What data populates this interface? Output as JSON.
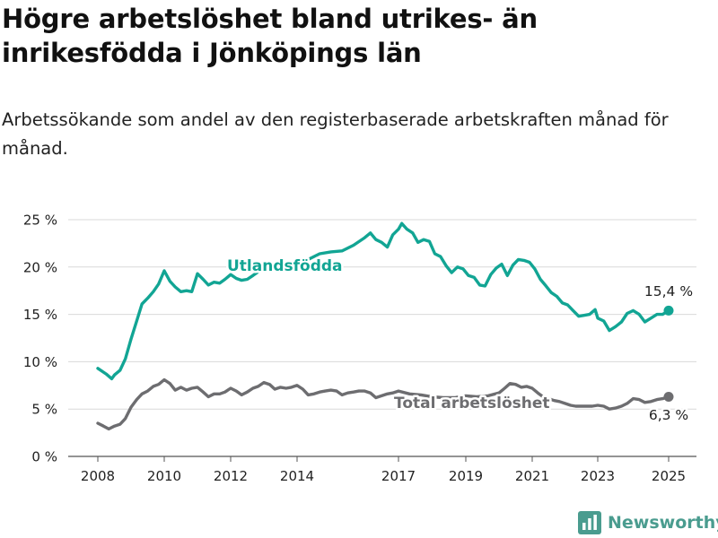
{
  "title": "Högre arbetslöshet bland utrikes- än inrikesfödda i Jönköpings län",
  "subtitle": "Arbetssökande som andel av den registerbaserade arbetskraften månad för månad.",
  "brand": "Newsworthy",
  "colors": {
    "utlandsfodda": "#12a594",
    "total": "#6d6d70",
    "brand": "#4a9c8f",
    "grid": "#d9d9d9"
  },
  "chart_data": {
    "type": "line",
    "x_unit": "year (decimal)",
    "y_unit": "%",
    "xlim": [
      2007.6,
      2025.95
    ],
    "ylim": [
      0,
      25
    ],
    "x_ticks": [
      2008,
      2010,
      2012,
      2014,
      2017,
      2019,
      2021,
      2023,
      2025
    ],
    "y_ticks": [
      {
        "value": 0,
        "label": "0 %"
      },
      {
        "value": 5,
        "label": "5 %"
      },
      {
        "value": 10,
        "label": "10 %"
      },
      {
        "value": 15,
        "label": "15 %"
      },
      {
        "value": 20,
        "label": "20 %"
      },
      {
        "value": 25,
        "label": "25 %"
      }
    ],
    "grid": "horizontal",
    "series": [
      {
        "name": "Utlandsfödda",
        "end_label": "15,4 %",
        "points": [
          [
            2008.0,
            9.3
          ],
          [
            2008.25,
            8.7
          ],
          [
            2008.42,
            8.2
          ],
          [
            2008.5,
            8.6
          ],
          [
            2008.67,
            9.1
          ],
          [
            2008.83,
            10.3
          ],
          [
            2009.0,
            12.4
          ],
          [
            2009.17,
            14.3
          ],
          [
            2009.33,
            16.1
          ],
          [
            2009.5,
            16.7
          ],
          [
            2009.67,
            17.4
          ],
          [
            2009.83,
            18.2
          ],
          [
            2010.0,
            19.6
          ],
          [
            2010.17,
            18.5
          ],
          [
            2010.33,
            17.9
          ],
          [
            2010.5,
            17.4
          ],
          [
            2010.67,
            17.5
          ],
          [
            2010.83,
            17.4
          ],
          [
            2011.0,
            19.3
          ],
          [
            2011.17,
            18.7
          ],
          [
            2011.33,
            18.1
          ],
          [
            2011.5,
            18.4
          ],
          [
            2011.67,
            18.3
          ],
          [
            2011.83,
            18.7
          ],
          [
            2012.0,
            19.2
          ],
          [
            2012.17,
            18.8
          ],
          [
            2012.33,
            18.6
          ],
          [
            2012.5,
            18.7
          ],
          [
            2012.67,
            19.1
          ],
          [
            2012.83,
            19.5
          ],
          [
            2013.0,
            20.1
          ],
          [
            2013.33,
            19.8
          ],
          [
            2013.67,
            20.3
          ],
          [
            2014.0,
            20.5
          ],
          [
            2014.33,
            20.8
          ],
          [
            2014.67,
            21.4
          ],
          [
            2015.0,
            21.6
          ],
          [
            2015.33,
            21.7
          ],
          [
            2015.67,
            22.3
          ],
          [
            2016.0,
            23.1
          ],
          [
            2016.17,
            23.6
          ],
          [
            2016.33,
            22.9
          ],
          [
            2016.5,
            22.6
          ],
          [
            2016.67,
            22.1
          ],
          [
            2016.83,
            23.4
          ],
          [
            2017.0,
            24.0
          ],
          [
            2017.1,
            24.6
          ],
          [
            2017.25,
            24.0
          ],
          [
            2017.42,
            23.6
          ],
          [
            2017.58,
            22.6
          ],
          [
            2017.75,
            22.9
          ],
          [
            2017.92,
            22.7
          ],
          [
            2018.08,
            21.4
          ],
          [
            2018.25,
            21.1
          ],
          [
            2018.42,
            20.1
          ],
          [
            2018.58,
            19.4
          ],
          [
            2018.75,
            20.0
          ],
          [
            2018.92,
            19.8
          ],
          [
            2019.08,
            19.1
          ],
          [
            2019.25,
            18.9
          ],
          [
            2019.42,
            18.1
          ],
          [
            2019.58,
            18.0
          ],
          [
            2019.75,
            19.2
          ],
          [
            2019.92,
            19.9
          ],
          [
            2020.08,
            20.3
          ],
          [
            2020.25,
            19.1
          ],
          [
            2020.42,
            20.2
          ],
          [
            2020.58,
            20.8
          ],
          [
            2020.75,
            20.7
          ],
          [
            2020.92,
            20.5
          ],
          [
            2021.08,
            19.8
          ],
          [
            2021.25,
            18.7
          ],
          [
            2021.42,
            18.0
          ],
          [
            2021.58,
            17.3
          ],
          [
            2021.75,
            16.9
          ],
          [
            2021.92,
            16.2
          ],
          [
            2022.08,
            16.0
          ],
          [
            2022.25,
            15.4
          ],
          [
            2022.42,
            14.8
          ],
          [
            2022.58,
            14.9
          ],
          [
            2022.75,
            15.0
          ],
          [
            2022.92,
            15.5
          ],
          [
            2023.0,
            14.6
          ],
          [
            2023.17,
            14.3
          ],
          [
            2023.33,
            13.3
          ],
          [
            2023.5,
            13.7
          ],
          [
            2023.67,
            14.2
          ],
          [
            2023.83,
            15.1
          ],
          [
            2024.0,
            15.4
          ],
          [
            2024.17,
            15.0
          ],
          [
            2024.33,
            14.2
          ],
          [
            2024.5,
            14.6
          ],
          [
            2024.67,
            15.0
          ],
          [
            2024.83,
            15.0
          ],
          [
            2025.0,
            15.4
          ]
        ]
      },
      {
        "name": "Total arbetslöshet",
        "end_label": "6,3 %",
        "points": [
          [
            2008.0,
            3.5
          ],
          [
            2008.17,
            3.2
          ],
          [
            2008.33,
            2.9
          ],
          [
            2008.5,
            3.2
          ],
          [
            2008.67,
            3.4
          ],
          [
            2008.83,
            4.0
          ],
          [
            2009.0,
            5.2
          ],
          [
            2009.17,
            6.0
          ],
          [
            2009.33,
            6.6
          ],
          [
            2009.5,
            6.9
          ],
          [
            2009.67,
            7.4
          ],
          [
            2009.83,
            7.6
          ],
          [
            2010.0,
            8.1
          ],
          [
            2010.17,
            7.7
          ],
          [
            2010.33,
            7.0
          ],
          [
            2010.5,
            7.3
          ],
          [
            2010.67,
            7.0
          ],
          [
            2010.83,
            7.2
          ],
          [
            2011.0,
            7.3
          ],
          [
            2011.17,
            6.8
          ],
          [
            2011.33,
            6.3
          ],
          [
            2011.5,
            6.6
          ],
          [
            2011.67,
            6.6
          ],
          [
            2011.83,
            6.8
          ],
          [
            2012.0,
            7.2
          ],
          [
            2012.17,
            6.9
          ],
          [
            2012.33,
            6.5
          ],
          [
            2012.5,
            6.8
          ],
          [
            2012.67,
            7.2
          ],
          [
            2012.83,
            7.4
          ],
          [
            2013.0,
            7.8
          ],
          [
            2013.17,
            7.6
          ],
          [
            2013.33,
            7.1
          ],
          [
            2013.5,
            7.3
          ],
          [
            2013.67,
            7.2
          ],
          [
            2013.83,
            7.3
          ],
          [
            2014.0,
            7.5
          ],
          [
            2014.17,
            7.1
          ],
          [
            2014.33,
            6.5
          ],
          [
            2014.5,
            6.6
          ],
          [
            2014.67,
            6.8
          ],
          [
            2014.83,
            6.9
          ],
          [
            2015.0,
            7.0
          ],
          [
            2015.17,
            6.9
          ],
          [
            2015.33,
            6.5
          ],
          [
            2015.5,
            6.7
          ],
          [
            2015.67,
            6.8
          ],
          [
            2015.83,
            6.9
          ],
          [
            2016.0,
            6.9
          ],
          [
            2016.17,
            6.7
          ],
          [
            2016.33,
            6.2
          ],
          [
            2016.5,
            6.4
          ],
          [
            2016.67,
            6.6
          ],
          [
            2016.83,
            6.7
          ],
          [
            2017.0,
            6.9
          ],
          [
            2017.33,
            6.6
          ],
          [
            2017.67,
            6.5
          ],
          [
            2018.0,
            6.3
          ],
          [
            2018.33,
            6.2
          ],
          [
            2018.67,
            6.2
          ],
          [
            2019.0,
            6.4
          ],
          [
            2019.33,
            6.3
          ],
          [
            2019.67,
            6.4
          ],
          [
            2020.0,
            6.7
          ],
          [
            2020.17,
            7.2
          ],
          [
            2020.33,
            7.7
          ],
          [
            2020.5,
            7.6
          ],
          [
            2020.67,
            7.3
          ],
          [
            2020.83,
            7.4
          ],
          [
            2021.0,
            7.2
          ],
          [
            2021.17,
            6.7
          ],
          [
            2021.33,
            6.3
          ],
          [
            2021.5,
            6.1
          ],
          [
            2021.67,
            5.9
          ],
          [
            2021.83,
            5.8
          ],
          [
            2022.0,
            5.6
          ],
          [
            2022.17,
            5.4
          ],
          [
            2022.33,
            5.3
          ],
          [
            2022.5,
            5.3
          ],
          [
            2022.67,
            5.3
          ],
          [
            2022.83,
            5.3
          ],
          [
            2023.0,
            5.4
          ],
          [
            2023.17,
            5.3
          ],
          [
            2023.33,
            5.0
          ],
          [
            2023.5,
            5.1
          ],
          [
            2023.67,
            5.3
          ],
          [
            2023.83,
            5.6
          ],
          [
            2024.0,
            6.1
          ],
          [
            2024.17,
            6.0
          ],
          [
            2024.33,
            5.7
          ],
          [
            2024.5,
            5.8
          ],
          [
            2024.67,
            6.0
          ],
          [
            2024.83,
            6.1
          ],
          [
            2025.0,
            6.3
          ]
        ]
      }
    ]
  }
}
